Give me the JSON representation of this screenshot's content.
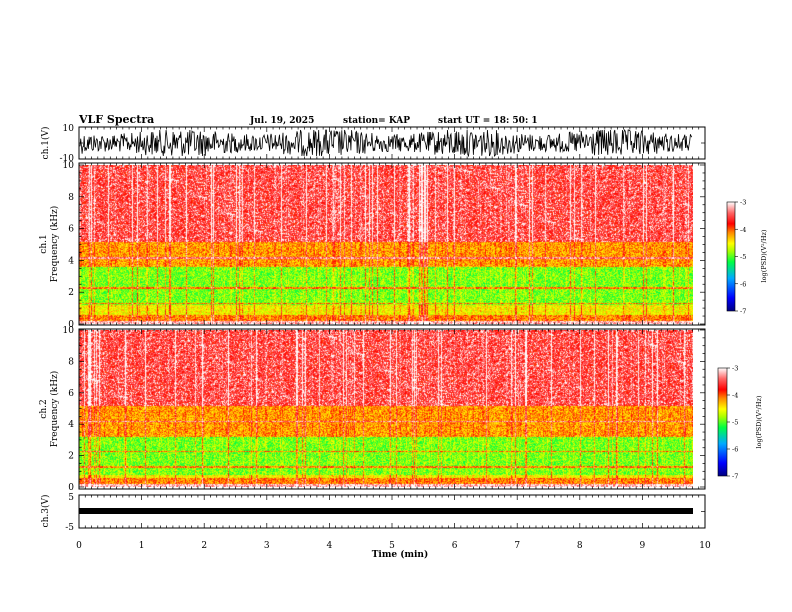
{
  "header": {
    "title": "VLF Spectra",
    "date": "Jul. 19, 2025",
    "station": "station= KAP",
    "start_ut": "start UT = 18: 50: 1"
  },
  "chart_data": [
    {
      "type": "line",
      "name": "ch1-waveform",
      "ylabel": "ch.1(V)",
      "ylim": [
        -10,
        10
      ],
      "yticks": [
        "10",
        "-10"
      ],
      "xlim": [
        0,
        10
      ]
    },
    {
      "type": "heatmap",
      "name": "ch1-spectrogram",
      "ylabel_line1": "ch.1",
      "ylabel_line2": "Frequency (kHz)",
      "ylim": [
        0,
        10
      ],
      "yticks": [
        "0",
        "2",
        "4",
        "6",
        "8",
        "10"
      ],
      "xlim": [
        0,
        9.8
      ],
      "colorbar": {
        "label": "log(PSD)(V²/Hz)",
        "ticks": [
          "-3",
          "-4",
          "-5",
          "-6",
          "-7"
        ],
        "range": [
          -7,
          -3
        ]
      }
    },
    {
      "type": "heatmap",
      "name": "ch2-spectrogram",
      "ylabel_line1": "ch.2",
      "ylabel_line2": "Frequency (kHz)",
      "ylim": [
        0,
        10
      ],
      "yticks": [
        "0",
        "2",
        "4",
        "6",
        "8",
        "10"
      ],
      "xlim": [
        0,
        9.8
      ],
      "colorbar": {
        "label": "log(PSD)(V²/Hz)",
        "ticks": [
          "-3",
          "-4",
          "-5",
          "-6",
          "-7"
        ],
        "range": [
          -7,
          -3
        ]
      }
    },
    {
      "type": "line",
      "name": "ch3-waveform",
      "ylabel": "ch.3(V)",
      "ylim": [
        -5,
        5
      ],
      "yticks": [
        "5",
        "-5"
      ],
      "xlim": [
        0,
        10
      ]
    }
  ],
  "xaxis": {
    "label": "Time (min)",
    "ticks": [
      "0",
      "1",
      "2",
      "3",
      "4",
      "5",
      "6",
      "7",
      "8",
      "9",
      "10"
    ]
  },
  "colors": {
    "waveform": "#000000",
    "colormap": [
      "#000080",
      "#0000ff",
      "#00aaff",
      "#00ff66",
      "#aaff00",
      "#ffff00",
      "#ff8800",
      "#ff0000",
      "#ffffff"
    ]
  }
}
